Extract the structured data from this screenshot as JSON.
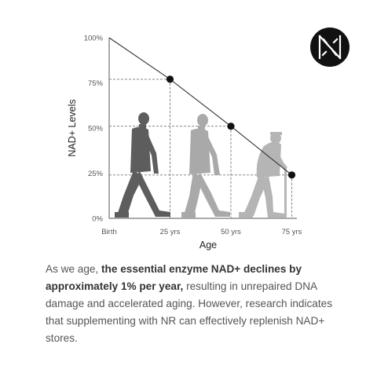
{
  "logo": {
    "name": "brand-logo",
    "colors": {
      "background": "#111111",
      "mark": "#ffffff"
    }
  },
  "chart_data": {
    "type": "line",
    "title": "",
    "xlabel": "Age",
    "ylabel": "NAD+ Levels",
    "x": [
      "Birth",
      "25 yrs",
      "50 yrs",
      "75 yrs"
    ],
    "y_ticks": [
      "0%",
      "25%",
      "50%",
      "75%",
      "100%"
    ],
    "ylim": [
      0,
      100
    ],
    "series": [
      {
        "values": [
          100,
          77,
          51,
          24
        ]
      }
    ],
    "markers_on": [
      "25 yrs",
      "50 yrs",
      "75 yrs"
    ],
    "guide_lines": "dashed",
    "illustrations": [
      "walking-adult-silhouette",
      "walking-middle-aged-silhouette",
      "elderly-with-cane-silhouette"
    ],
    "colors": {
      "line": "#333333",
      "marker": "#111111",
      "figure_1": "#5d5d5d",
      "figure_2": "#a9a9a9",
      "figure_3": "#b5b5b5"
    }
  },
  "text": {
    "p1": "As we age, ",
    "p2_bold": "the essential enzyme NAD+ declines by approximately 1% per year,",
    "p3": " resulting in unrepaired DNA damage and accelerated aging. However, research indicates that supplementing with NR can effectively replenish NAD+ stores."
  }
}
